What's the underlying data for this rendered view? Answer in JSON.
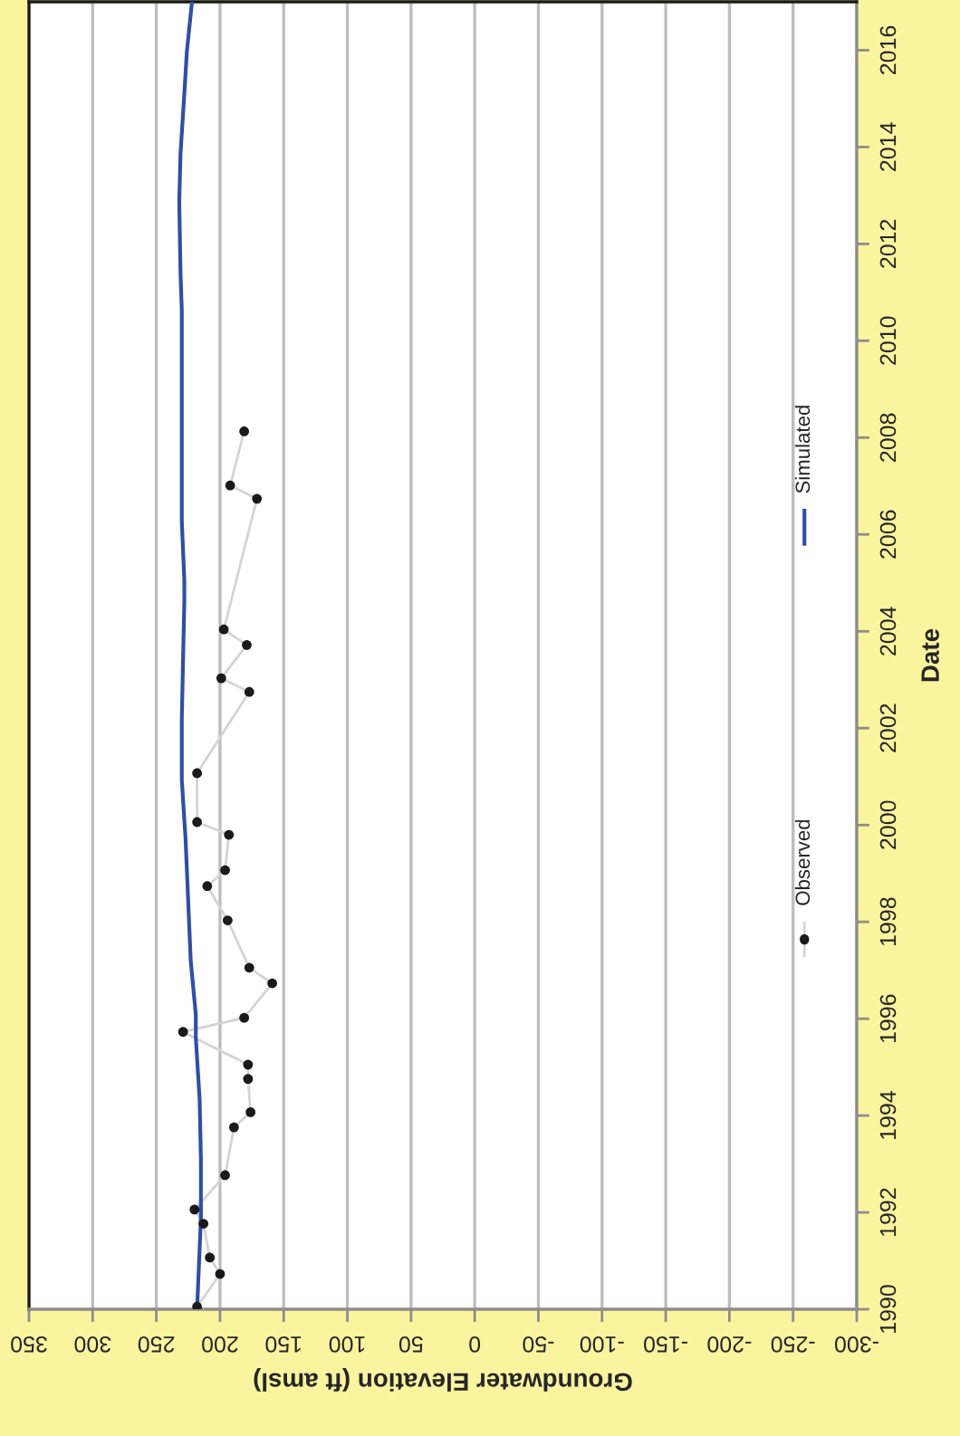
{
  "chart_data": {
    "type": "line",
    "orientation": "horizontal",
    "xlabel": "Groundwater Elevation (ft amsl)",
    "ylabel": "Date",
    "xlim": [
      350,
      -300
    ],
    "xticks": [
      350,
      300,
      250,
      200,
      150,
      100,
      50,
      0,
      -50,
      -100,
      -150,
      -200,
      -250,
      -300
    ],
    "ylim": [
      "1990-01-01",
      "2016-12-31"
    ],
    "yticks": [
      "1990",
      "1992",
      "1994",
      "1996",
      "1998",
      "2000",
      "2002",
      "2004",
      "2006",
      "2008",
      "2010",
      "2012",
      "2014",
      "2016"
    ],
    "grid": "x",
    "legend": "right",
    "series": [
      {
        "name": "Observed",
        "color": "#d4d4d4",
        "marker": "circle",
        "colors": [
          "#1a1a1a",
          "#1a1a1a",
          "#1a1a1a",
          "#1a1a1a",
          "#1a1a1a",
          "#1a1a1a",
          "#1a1a1a",
          "#1a1a1a",
          "#1a1a1a",
          "#1a1a1a",
          "#1a1a1a",
          "#1a1a1a",
          "#1a1a1a",
          "#1a1a1a",
          "#1a1a1a",
          "#1a1a1a",
          "#1a1a1a",
          "#1a1a1a",
          "#1a1a1a",
          "#1a1a1a",
          "#1a1a1a",
          "#1a1a1a",
          "#1a1a1a",
          "#1a1a1a",
          "#1a1a1a",
          "#1a1a1a",
          "#1a1a1a"
        ],
        "x": [
          "1990-01-20",
          "1990-09-24",
          "1991-01-26",
          "1991-10-08",
          "1992-01-23",
          "1992-10-08",
          "1993-10-04",
          "1994-01-26",
          "1994-10-04",
          "1995-01-20",
          "1995-09-24",
          "1996-01-08",
          "1996-09-24",
          "1997-01-20",
          "1998-01-12",
          "1998-09-27",
          "1999-01-26",
          "1999-10-19",
          "2000-01-23",
          "2001-01-26",
          "2002-10-01",
          "2003-01-12",
          "2003-09-20",
          "2004-01-15",
          "2006-09-27",
          "2007-01-05",
          "2008-02-17"
        ],
        "values": [
          218,
          200,
          208,
          213,
          220,
          196,
          189,
          176,
          178,
          178,
          229,
          181,
          159,
          177,
          194,
          210,
          196,
          193,
          218,
          218,
          177,
          199,
          179,
          197,
          171,
          192,
          181
        ]
      },
      {
        "name": "Simulated",
        "color": "#2e4fa4",
        "x": [
          "1990-01-01",
          "1991-11-14",
          "1993-02-06",
          "1994-05-05",
          "1995-08-08",
          "1996-01-30",
          "1997-03-15",
          "1998-06-10",
          "1999-09-10",
          "2000-12-06",
          "2001-07-27",
          "2002-03-08",
          "2003-06-03",
          "2004-08-28",
          "2005-01-15",
          "2006-04-13",
          "2007-07-16",
          "2009-05-27",
          "2010-08-19",
          "2011-05-19",
          "2012-11-13",
          "2013-11-17",
          "2015-02-10",
          "2015-12-24",
          "2016-12-31"
        ],
        "values": [
          218,
          215,
          215,
          216,
          219,
          219,
          223,
          225,
          227,
          230,
          230,
          230,
          229,
          228,
          228,
          230,
          230,
          230,
          230,
          231,
          232,
          231,
          228,
          226,
          222
        ]
      }
    ]
  }
}
